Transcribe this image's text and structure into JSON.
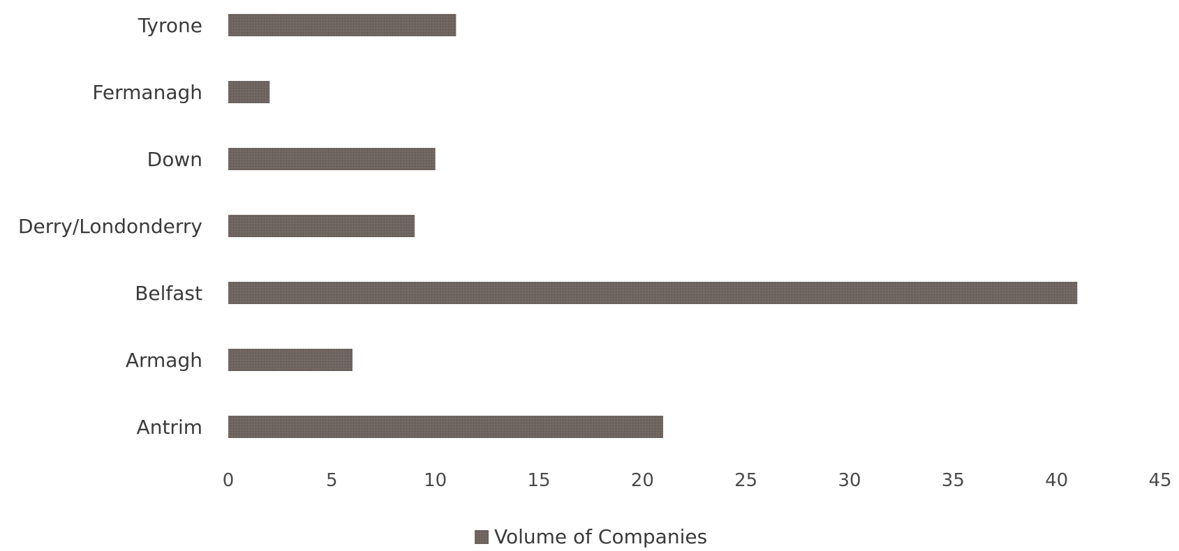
{
  "chart_data": {
    "type": "bar",
    "orientation": "horizontal",
    "categories": [
      "Antrim",
      "Armagh",
      "Belfast",
      "Derry/Londonderry",
      "Down",
      "Fermanagh",
      "Tyrone"
    ],
    "series": [
      {
        "name": "Volume of Companies",
        "values": [
          21,
          6,
          41,
          9,
          10,
          2,
          11
        ]
      }
    ],
    "xlim": [
      0,
      45
    ],
    "xticks": [
      "0",
      "5",
      "10",
      "15",
      "20",
      "25",
      "30",
      "35",
      "40",
      "45"
    ],
    "grid": false,
    "legend_position": "bottom",
    "bar_color": "#6e6460"
  }
}
